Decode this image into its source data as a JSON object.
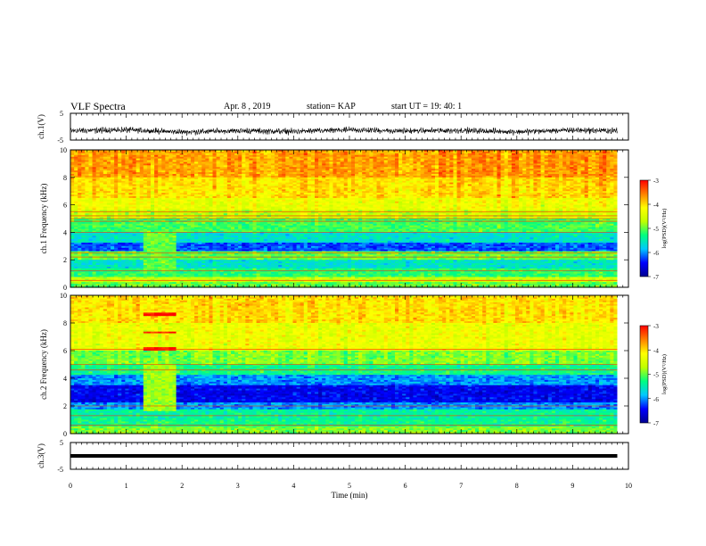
{
  "header": {
    "title": "VLF Spectra",
    "date": "Apr. 8 , 2019",
    "station": "station= KAP",
    "start_ut": "start UT =   19: 40: 1"
  },
  "colorscale": {
    "stops": [
      "#000090",
      "#0000ff",
      "#00c8ff",
      "#00ff80",
      "#c0ff00",
      "#ffff00",
      "#ff8000",
      "#ff0000",
      "#ffffff"
    ]
  },
  "chart_data": [
    {
      "type": "line",
      "panel": "ch1-waveform",
      "ylabel": "ch.1(V)",
      "ylim": [
        -5,
        5
      ],
      "yticks": [
        "5",
        "-5"
      ],
      "xlim": [
        0,
        10
      ],
      "note_series": "noisy broadband signal oscillating roughly between -3 and +1 V over 0–9.8 min",
      "x": [
        0,
        1,
        2,
        3,
        4,
        5,
        6,
        7,
        8,
        9,
        9.8
      ],
      "y": [
        -1.5,
        -1.2,
        -2.0,
        -1.5,
        -1.8,
        -1.2,
        -1.6,
        -1.4,
        -1.9,
        -1.3,
        -1.5
      ]
    },
    {
      "type": "heatmap",
      "panel": "ch1-spectrogram",
      "ylabel": "ch.1 Frequency (kHz)",
      "ylim": [
        0,
        10
      ],
      "yticks": [
        "0",
        "2",
        "4",
        "6",
        "8",
        "10"
      ],
      "xlim": [
        0,
        10
      ],
      "data_extent_x": [
        0,
        9.8
      ],
      "colorbar": {
        "label": "log(PSD)(V²/Hz)",
        "range": [
          -7,
          -3
        ],
        "ticks": [
          "-3",
          "-4",
          "-5",
          "-6",
          "-7"
        ]
      },
      "bands": [
        {
          "f": [
            0,
            0.4
          ],
          "v": -5.0
        },
        {
          "f": [
            0.4,
            0.8
          ],
          "v": -4.6
        },
        {
          "f": [
            0.8,
            1.4
          ],
          "v": -5.2
        },
        {
          "f": [
            1.4,
            2.0
          ],
          "v": -5.6
        },
        {
          "f": [
            2.0,
            2.6
          ],
          "v": -5.0
        },
        {
          "f": [
            2.6,
            3.2
          ],
          "v": -6.2
        },
        {
          "f": [
            3.2,
            4.0
          ],
          "v": -5.6
        },
        {
          "f": [
            4.0,
            5.0
          ],
          "v": -5.1
        },
        {
          "f": [
            5.0,
            5.6
          ],
          "v": -4.6
        },
        {
          "f": [
            5.6,
            6.5
          ],
          "v": -4.3
        },
        {
          "f": [
            6.5,
            8.0
          ],
          "v": -4.0
        },
        {
          "f": [
            8.0,
            10.0
          ],
          "v": -3.7
        }
      ],
      "lines_khz": [
        0.5,
        1.2,
        2.2,
        2.5,
        4.0,
        4.8,
        5.0,
        5.2,
        5.5
      ],
      "events": [
        {
          "t": [
            1.3,
            1.9
          ],
          "f": [
            1.0,
            4.0
          ],
          "v": -5.0
        }
      ]
    },
    {
      "type": "heatmap",
      "panel": "ch2-spectrogram",
      "ylabel": "ch.2 Frequency (kHz)",
      "ylim": [
        0,
        10
      ],
      "yticks": [
        "0",
        "2",
        "4",
        "6",
        "8",
        "10"
      ],
      "xlim": [
        0,
        10
      ],
      "data_extent_x": [
        0,
        9.8
      ],
      "colorbar": {
        "label": "log(PSD)(V²/Hz)",
        "range": [
          -7,
          -3
        ],
        "ticks": [
          "-3",
          "-4",
          "-5",
          "-6",
          "-7"
        ]
      },
      "bands": [
        {
          "f": [
            0,
            0.5
          ],
          "v": -4.9
        },
        {
          "f": [
            0.5,
            1.0
          ],
          "v": -5.3
        },
        {
          "f": [
            1.0,
            1.8
          ],
          "v": -5.4
        },
        {
          "f": [
            1.8,
            2.3
          ],
          "v": -6.0
        },
        {
          "f": [
            2.3,
            3.5
          ],
          "v": -6.5
        },
        {
          "f": [
            3.5,
            4.2
          ],
          "v": -6.0
        },
        {
          "f": [
            4.2,
            5.0
          ],
          "v": -5.3
        },
        {
          "f": [
            5.0,
            6.0
          ],
          "v": -4.9
        },
        {
          "f": [
            6.0,
            8.0
          ],
          "v": -4.3
        },
        {
          "f": [
            8.0,
            10.0
          ],
          "v": -4.0
        }
      ],
      "lines_khz": [
        0.6,
        1.3,
        2.0,
        4.6,
        5.0,
        6.1
      ],
      "events": [
        {
          "t": [
            1.3,
            1.9
          ],
          "f": [
            1.6,
            5.0
          ],
          "v": -4.8
        },
        {
          "t": [
            1.3,
            1.9
          ],
          "f": [
            6.0,
            6.2
          ],
          "v": -3.1
        },
        {
          "t": [
            1.3,
            1.9
          ],
          "f": [
            7.2,
            7.4
          ],
          "v": -3.1
        },
        {
          "t": [
            1.3,
            1.9
          ],
          "f": [
            8.5,
            8.8
          ],
          "v": -3.1
        }
      ]
    },
    {
      "type": "line",
      "panel": "ch3-waveform",
      "ylabel": "ch.3(V)",
      "ylim": [
        -5,
        5
      ],
      "yticks": [
        "5",
        "-5"
      ],
      "xlim": [
        0,
        10
      ],
      "xlabel": "Time (min)",
      "xticks": [
        "0",
        "1",
        "2",
        "3",
        "4",
        "5",
        "6",
        "7",
        "8",
        "9",
        "10"
      ],
      "x": [
        0,
        9.8
      ],
      "y": [
        0,
        0
      ]
    }
  ]
}
